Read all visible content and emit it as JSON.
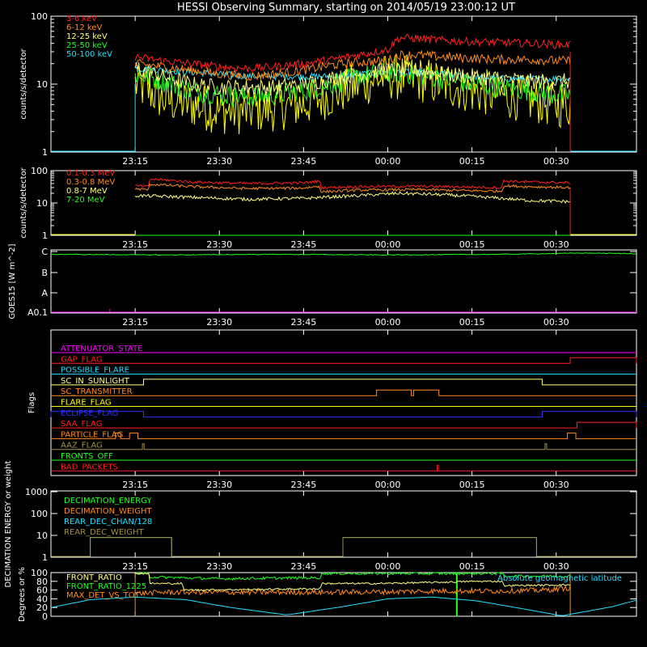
{
  "title": "HESSI Observing Summary, starting on 2014/05/19 23:00:12 UT",
  "time_axis": {
    "t0": "23:00:12",
    "range_minutes": [
      0,
      104.3
    ],
    "tick_minutes": [
      15,
      30,
      45,
      60,
      75,
      90
    ],
    "tick_labels": [
      "23:15",
      "23:30",
      "23:45",
      "00:00",
      "00:15",
      "00:30"
    ]
  },
  "colors": {
    "red": "#ff2020",
    "orange": "#ff8c1a",
    "lightyellow": "#ffff80",
    "green": "#20ff20",
    "cyan": "#20e0ff",
    "yellow": "#ffff00",
    "magenta": "#ff00ff",
    "blue": "#3030ff",
    "olive": "#a09040"
  },
  "chart_data": [
    {
      "type": "line",
      "id": "lowE",
      "ylabel": "counts/s/detector",
      "yscale": "log",
      "ylim": [
        1,
        100
      ],
      "ytick_labels": [
        "1",
        "10",
        "100"
      ],
      "data_interval_minutes": [
        15.0,
        92.5
      ],
      "series": [
        {
          "name": "3-6 keV",
          "color": "red",
          "noise": 0.06,
          "x": [
            15,
            20,
            25,
            30,
            35,
            40,
            45,
            50,
            55,
            60,
            62,
            65,
            70,
            75,
            80,
            85,
            90,
            92.5
          ],
          "y": [
            25,
            22,
            20,
            18,
            17,
            18,
            20,
            23,
            27,
            32,
            48,
            47,
            44,
            42,
            41,
            40,
            38,
            38
          ]
        },
        {
          "name": "6-12 keV",
          "color": "orange",
          "noise": 0.07,
          "x": [
            15,
            20,
            25,
            30,
            35,
            40,
            45,
            50,
            55,
            60,
            62,
            65,
            70,
            75,
            80,
            85,
            90,
            92.5
          ],
          "y": [
            20,
            18,
            16,
            14,
            13,
            14,
            16,
            19,
            21,
            22,
            27,
            27,
            25,
            24,
            23,
            23,
            22,
            22
          ]
        },
        {
          "name": "12-25 keV",
          "color": "lightyellow",
          "noise": 0.12,
          "x": [
            15,
            20,
            25,
            30,
            35,
            40,
            45,
            50,
            55,
            60,
            65,
            70,
            75,
            80,
            85,
            90,
            92.5
          ],
          "y": [
            17,
            13,
            10,
            9,
            9,
            9,
            10,
            12,
            14,
            16,
            16,
            14,
            13,
            12,
            11,
            11,
            11
          ]
        },
        {
          "name": "25-50 keV",
          "color": "green",
          "noise": 0.16,
          "x": [
            15,
            20,
            25,
            30,
            35,
            40,
            45,
            50,
            55,
            60,
            65,
            70,
            75,
            80,
            85,
            90,
            92.5
          ],
          "y": [
            14,
            11,
            8,
            7,
            6.5,
            7,
            8,
            10,
            13,
            15,
            14,
            12,
            10,
            9,
            8,
            7,
            7
          ]
        },
        {
          "name": "50-100 keV",
          "color": "cyan",
          "noise": 0.05,
          "x": [
            15,
            20,
            25,
            30,
            35,
            40,
            45,
            50,
            55,
            60,
            65,
            70,
            75,
            80,
            85,
            90,
            92.5
          ],
          "y": [
            17,
            16,
            15,
            14,
            13,
            13,
            13,
            13,
            14,
            15,
            15,
            14,
            13,
            12,
            12,
            12,
            12
          ]
        },
        {
          "name": "",
          "color": "yellow",
          "noise": 0.35,
          "x": [
            15,
            20,
            25,
            30,
            35,
            40,
            45,
            50,
            55,
            60,
            65,
            70,
            75,
            80,
            85,
            90,
            92.5
          ],
          "y": [
            10,
            6,
            5,
            4,
            4,
            4.5,
            5,
            7,
            10,
            13,
            12,
            10,
            8,
            7,
            6,
            5,
            5
          ]
        }
      ]
    },
    {
      "type": "line",
      "id": "highE",
      "ylabel": "counts/s/detector",
      "yscale": "log",
      "ylim": [
        1,
        100
      ],
      "ytick_labels": [
        "1",
        "10",
        "100"
      ],
      "data_interval_minutes": [
        15.0,
        92.5
      ],
      "series": [
        {
          "name": "0.1-0.3 MeV",
          "color": "red",
          "noise": 0.04,
          "x": [
            15,
            17.5,
            17.6,
            25,
            35,
            45,
            47.9,
            48,
            55,
            65,
            80.4,
            80.5,
            85,
            92.5
          ],
          "y": [
            34,
            32,
            55,
            45,
            40,
            42,
            48,
            30,
            32,
            33,
            30,
            48,
            45,
            42
          ]
        },
        {
          "name": "0.3-0.8 MeV",
          "color": "orange",
          "noise": 0.04,
          "x": [
            15,
            17.5,
            17.6,
            25,
            35,
            45,
            47.9,
            48,
            55,
            65,
            80.4,
            80.5,
            85,
            92.5
          ],
          "y": [
            27,
            26,
            38,
            32,
            28,
            29,
            33,
            22,
            25,
            26,
            23,
            34,
            32,
            30
          ]
        },
        {
          "name": "0.8-7 MeV",
          "color": "lightyellow",
          "noise": 0.05,
          "x": [
            15,
            20,
            25,
            35,
            45,
            55,
            62,
            70,
            80,
            85,
            92.5
          ],
          "y": [
            17,
            16,
            15,
            13,
            14,
            17,
            20,
            18,
            14,
            12,
            11
          ]
        },
        {
          "name": "7-20 MeV",
          "color": "green",
          "noise": 0.0,
          "x": [
            15,
            92.5
          ],
          "y": [
            1,
            1
          ]
        }
      ]
    },
    {
      "type": "line",
      "id": "goes",
      "ylabel": "GOES15 [W m^-2]",
      "yscale": "log",
      "ytick_labels": [
        "C",
        "B",
        "A",
        "A0.1"
      ],
      "series": [
        {
          "name": "",
          "color": "green",
          "noise": 0.01,
          "x": [
            0,
            20,
            40,
            60,
            80,
            95,
            104.3
          ],
          "y": [
            0.93,
            0.92,
            0.93,
            0.92,
            0.93,
            0.95,
            0.94
          ]
        }
      ]
    },
    {
      "type": "line",
      "id": "flags",
      "ylabel": "Flags",
      "series": [
        {
          "name": "ATTENUATOR_STATE",
          "color": "magenta",
          "segments": []
        },
        {
          "name": "GAP_FLAG",
          "color": "red",
          "segments": [
            [
              92.5,
              104.3
            ]
          ]
        },
        {
          "name": "POSSIBLE_FLARE",
          "color": "cyan",
          "segments": []
        },
        {
          "name": "SC_IN_SUNLIGHT",
          "color": "lightyellow",
          "segments": [
            [
              16.5,
              87.5
            ]
          ]
        },
        {
          "name": "SC_TRANSMITTER",
          "color": "orange",
          "segments": [
            [
              58.0,
              64.2
            ],
            [
              64.6,
              69.1
            ]
          ]
        },
        {
          "name": "FLARE_FLAG",
          "color": "yellow",
          "segments": []
        },
        {
          "name": "ECLIPSE_FLAG",
          "color": "blue",
          "segments": [
            [
              0,
              16.5
            ],
            [
              87.5,
              104.3
            ]
          ]
        },
        {
          "name": "SAA_FLAG",
          "color": "red",
          "segments": [
            [
              93.7,
              104.3
            ]
          ]
        },
        {
          "name": "PARTICLE_FLAG",
          "color": "orange",
          "segments": [
            [
              11.5,
              12.4
            ],
            [
              14.0,
              15.5
            ],
            [
              92.0,
              93.5
            ]
          ]
        },
        {
          "name": "AAZ_FLAG",
          "color": "olive",
          "segments": [
            [
              16.3,
              16.6
            ],
            [
              88.0,
              88.3
            ]
          ]
        },
        {
          "name": "FRONTS_OFF",
          "color": "green",
          "segments": []
        },
        {
          "name": "BAD_PACKETS",
          "color": "red",
          "segments": [
            [
              68.8,
              69.0
            ]
          ]
        }
      ]
    },
    {
      "type": "line",
      "id": "decimation",
      "ylabel": "DECIMATION ENERGY or weight",
      "yscale": "log",
      "ylim": [
        1,
        1000
      ],
      "ytick_labels": [
        "1",
        "10",
        "100",
        "1000"
      ],
      "series": [
        {
          "name": "DECIMATION_ENERGY",
          "color": "green",
          "segments": []
        },
        {
          "name": "DECIMATION_WEIGHT",
          "color": "orange",
          "segments": []
        },
        {
          "name": "REAR_DEC_CHAN/128",
          "color": "cyan",
          "segments": [
            [
              7,
              21.5,
              8
            ],
            [
              52,
              86.5,
              8
            ]
          ]
        },
        {
          "name": "REAR_DEC_WEIGHT",
          "color": "olive",
          "segments": [
            [
              7,
              21.5,
              8
            ],
            [
              52,
              86.5,
              8
            ]
          ]
        }
      ]
    },
    {
      "type": "line",
      "id": "ratio",
      "ylabel": "Degrees or %",
      "ylim": [
        0,
        100
      ],
      "ytick_labels": [
        "0",
        "20",
        "40",
        "60",
        "80",
        "100"
      ],
      "annotation": "Absolute geomagnetic latitude",
      "series": [
        {
          "name": "FRONT_RATIO",
          "color": "lightyellow",
          "noise": 2,
          "x": [
            15,
            17.5,
            17.6,
            23.5,
            23.6,
            40,
            48,
            48.1,
            58,
            70,
            75,
            80.5,
            80.6,
            92.5
          ],
          "y": [
            98,
            98,
            75,
            75,
            60,
            62,
            63,
            75,
            75,
            78,
            80,
            80,
            70,
            72
          ]
        },
        {
          "name": "FRONT_RATIO_1225",
          "color": "green",
          "noise": 3,
          "x": [
            15,
            17.5,
            17.6,
            30,
            45,
            48,
            48.1,
            60,
            70,
            80.5,
            80.6,
            92.5
          ],
          "y": [
            98,
            98,
            90,
            86,
            88,
            88,
            98,
            98,
            98,
            98,
            92,
            92
          ]
        },
        {
          "name": "MAX_DET_VS_TOT",
          "color": "orange",
          "noise": 6,
          "x": [
            15,
            20,
            30,
            40,
            50,
            60,
            70,
            80,
            88,
            92.5
          ],
          "y": [
            52,
            55,
            55,
            55,
            55,
            56,
            58,
            58,
            60,
            65
          ]
        },
        {
          "name": "",
          "color": "cyan",
          "noise": 0,
          "x": [
            0,
            7,
            15,
            24,
            32,
            42,
            52,
            60,
            68,
            76,
            85,
            91,
            100,
            104.3
          ],
          "y": [
            20,
            38,
            44,
            38,
            20,
            3,
            22,
            40,
            44,
            35,
            15,
            1,
            22,
            37
          ]
        }
      ]
    }
  ]
}
